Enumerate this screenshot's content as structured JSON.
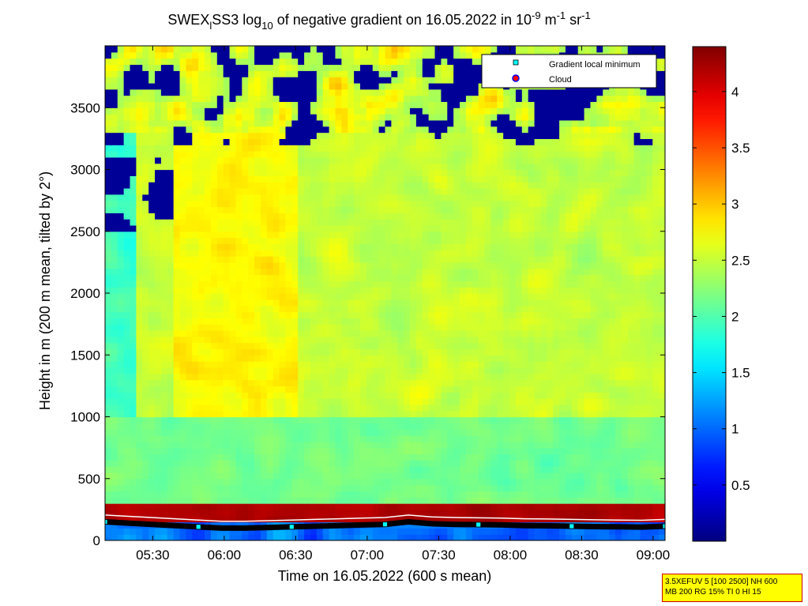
{
  "chart_data": {
    "type": "heatmap",
    "title": {
      "prefix": "SWEX",
      "prefix_sub": "l",
      "main": "SS3 log",
      "log_sub": "10",
      "rest": " of negative gradient on 16.05.2022 in 10",
      "exp1": "-9",
      "unit1": " m",
      "exp2": "-1",
      "unit2": " sr",
      "exp3": "-1"
    },
    "xlabel": "Time on 16.05.2022 (600 s mean)",
    "ylabel": "Height in m (200 m mean, tilted by 2°)",
    "x_range": [
      "05:10",
      "09:05"
    ],
    "x_ticks": [
      "05:30",
      "06:00",
      "06:30",
      "07:00",
      "07:30",
      "08:00",
      "08:30",
      "09:00"
    ],
    "ylim": [
      0,
      4000
    ],
    "y_ticks": [
      0,
      500,
      1000,
      1500,
      2000,
      2500,
      3000,
      3500
    ],
    "colorbar": {
      "range": [
        0,
        4.4
      ],
      "ticks": [
        0.5,
        1,
        1.5,
        2,
        2.5,
        3,
        3.5,
        4
      ],
      "colormap": "jet"
    },
    "legend": {
      "placement": "top-right",
      "entries": [
        {
          "label": "Gradient local minimum",
          "marker": "square",
          "color": "#00ffff"
        },
        {
          "label": "Cloud",
          "marker": "circle",
          "color": "#ff0000"
        }
      ]
    },
    "field_description_levels": {
      "surface_band_m": [
        150,
        300
      ],
      "surface_band_value": 4.2,
      "boundary_layer_value": 2.3,
      "upper_layer_value": 2.7
    },
    "gradient_local_minimum_m": [
      150,
      140,
      130,
      120,
      110,
      100,
      100,
      105,
      110,
      115,
      120,
      125,
      130,
      150,
      135,
      130,
      128,
      125,
      120,
      118,
      115,
      112,
      110,
      108,
      115
    ]
  },
  "info_box": {
    "line1": "3.5XEFUV 5 [100 2500] NH 600",
    "line2": "MB 200 RG 15% TI 0 HI 15"
  },
  "colors": {
    "frame": "#000000",
    "info_bg": "#ffff00",
    "info_border": "#cc0000"
  }
}
